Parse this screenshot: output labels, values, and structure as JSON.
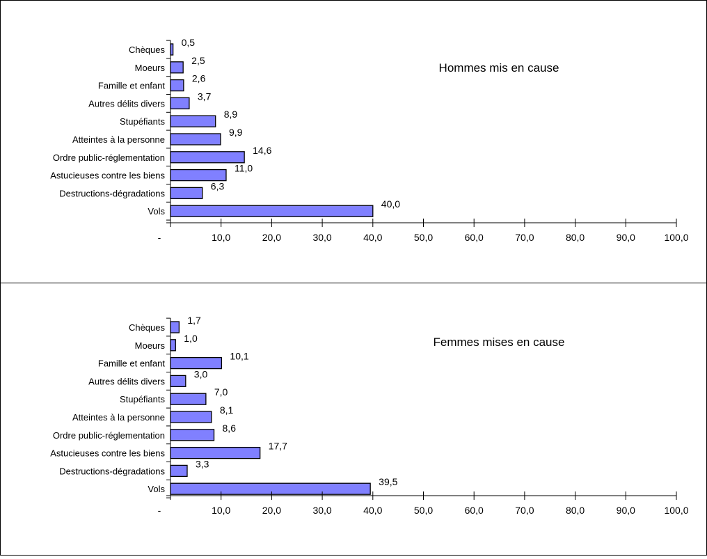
{
  "chart_data": [
    {
      "type": "bar",
      "orientation": "horizontal",
      "annotation": "Hommes mis en cause",
      "categories": [
        "Chèques",
        "Moeurs",
        "Famille et enfant",
        "Autres délits divers",
        "Stupéfiants",
        "Atteintes à la personne",
        "Ordre public-réglementation",
        "Astucieuses contre les biens",
        "Destructions-dégradations",
        "Vols"
      ],
      "values": [
        0.5,
        2.5,
        2.6,
        3.7,
        8.9,
        9.9,
        14.6,
        11.0,
        6.3,
        40.0
      ],
      "value_labels": [
        "0,5",
        "2,5",
        "2,6",
        "3,7",
        "8,9",
        "9,9",
        "14,6",
        "11,0",
        "6,3",
        "40,0"
      ],
      "xlim": [
        0,
        100
      ],
      "x_tick_labels": [
        "-",
        "10,0",
        "20,0",
        "30,0",
        "40,0",
        "50,0",
        "60,0",
        "70,0",
        "80,0",
        "90,0",
        "100,0"
      ],
      "grid": false,
      "legend": "none"
    },
    {
      "type": "bar",
      "orientation": "horizontal",
      "annotation": "Femmes mises en cause",
      "categories": [
        "Chèques",
        "Moeurs",
        "Famille et enfant",
        "Autres délits divers",
        "Stupéfiants",
        "Atteintes à la personne",
        "Ordre public-réglementation",
        "Astucieuses contre les biens",
        "Destructions-dégradations",
        "Vols"
      ],
      "values": [
        1.7,
        1.0,
        10.1,
        3.0,
        7.0,
        8.1,
        8.6,
        17.7,
        3.3,
        39.5
      ],
      "value_labels": [
        "1,7",
        "1,0",
        "10,1",
        "3,0",
        "7,0",
        "8,1",
        "8,6",
        "17,7",
        "3,3",
        "39,5"
      ],
      "xlim": [
        0,
        100
      ],
      "x_tick_labels": [
        "-",
        "10,0",
        "20,0",
        "30,0",
        "40,0",
        "50,0",
        "60,0",
        "70,0",
        "80,0",
        "90,0",
        "100,0"
      ],
      "grid": false,
      "legend": "none"
    }
  ],
  "colors": {
    "bar_fill": "#8080ff",
    "bar_stroke": "#000000",
    "frame": "#000000"
  }
}
